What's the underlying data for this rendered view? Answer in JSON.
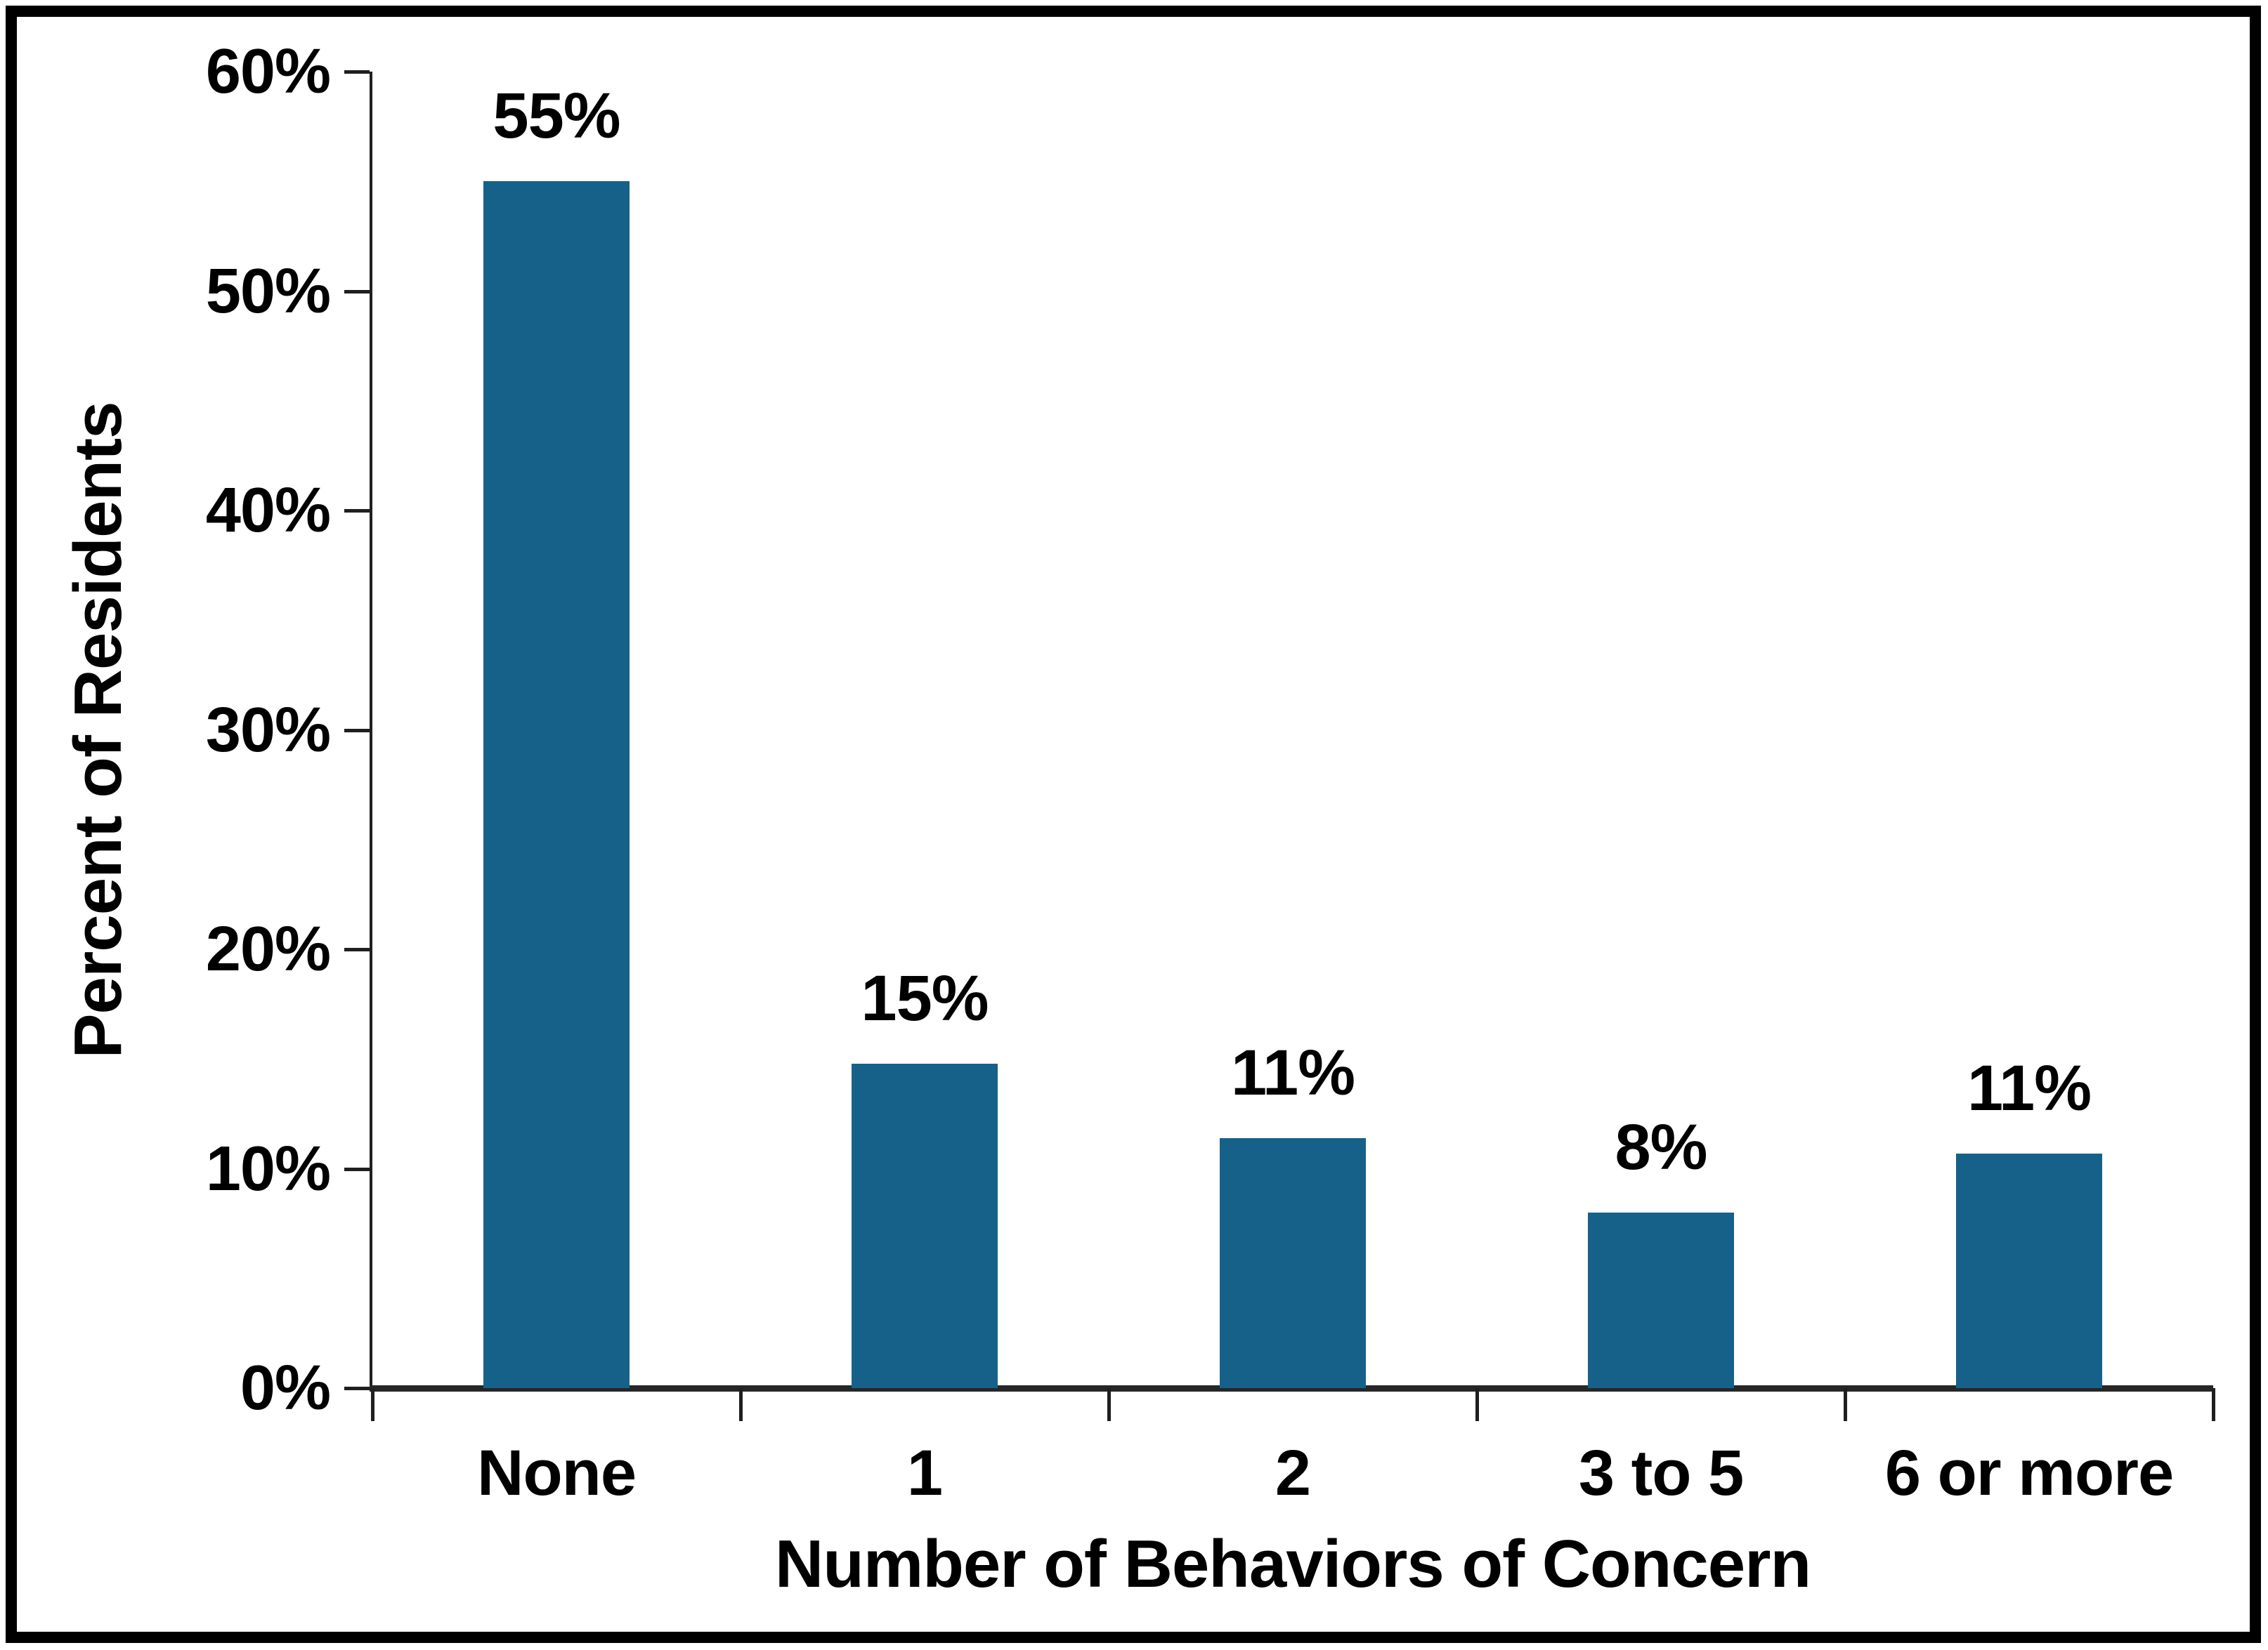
{
  "chart_data": {
    "type": "bar",
    "title": "",
    "categories": [
      "None",
      "1",
      "2",
      "3 to 5",
      "6 or more"
    ],
    "values": [
      55,
      15,
      11,
      8,
      11
    ],
    "bar_labels": [
      "55%",
      "15%",
      "11%",
      "8%",
      "11%"
    ],
    "precise_values": [
      55,
      14.8,
      11.4,
      8,
      10.7
    ],
    "xlabel": "Number of Behaviors of Concern",
    "ylabel": "Percent of Residents",
    "ylim": [
      0,
      60
    ],
    "ytick_interval": 10,
    "ytick_labels": [
      "0%",
      "10%",
      "20%",
      "30%",
      "40%",
      "50%",
      "60%"
    ],
    "grid": false,
    "legend": "none",
    "bar_color": "#16618A",
    "axis_color": "#262626",
    "frame_color": "#000000",
    "text_color": "#000000"
  }
}
